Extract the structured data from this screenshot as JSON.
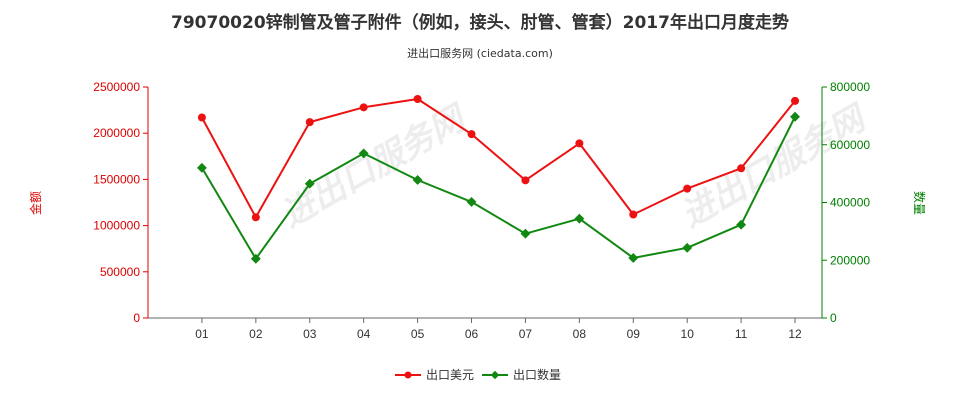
{
  "chart_data": {
    "type": "line",
    "title": "79070020锌制管及管子附件（例如，接头、肘管、管套）2017年出口月度走势",
    "subtitle": "进出口服务网 (ciedata.com)",
    "categories": [
      "01",
      "02",
      "03",
      "04",
      "05",
      "06",
      "07",
      "08",
      "09",
      "10",
      "11",
      "12"
    ],
    "y_left": {
      "label": "金额",
      "min": 0,
      "max": 2500000,
      "ticks": [
        0,
        500000,
        1000000,
        1500000,
        2000000,
        2500000
      ],
      "color": "#dd0000"
    },
    "y_right": {
      "label": "数量",
      "min": 0,
      "max": 800000,
      "ticks": [
        0,
        200000,
        400000,
        600000,
        800000
      ],
      "color": "#008000"
    },
    "series": [
      {
        "name": "出口美元",
        "axis": "left",
        "color": "#ee1111",
        "marker": "circle",
        "values": [
          2170000,
          1090000,
          2120000,
          2280000,
          2370000,
          1990000,
          1490000,
          1890000,
          1120000,
          1400000,
          1620000,
          2350000
        ]
      },
      {
        "name": "出口数量",
        "axis": "right",
        "color": "#118811",
        "marker": "diamond",
        "values": [
          520000,
          205000,
          465000,
          570000,
          478000,
          402000,
          292000,
          344000,
          208000,
          243000,
          323000,
          697000
        ]
      }
    ],
    "legend_position": "bottom-center",
    "grid": false
  },
  "watermark": "进出口服务网"
}
